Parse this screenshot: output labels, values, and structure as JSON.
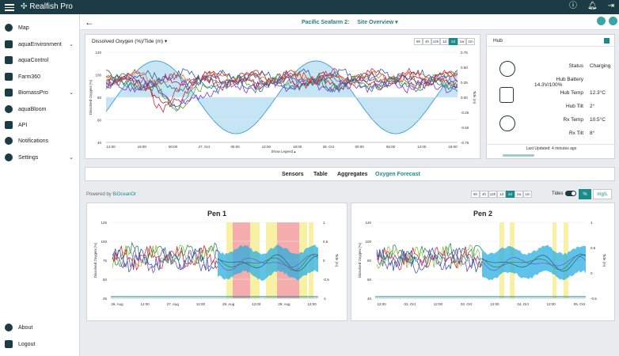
{
  "app": {
    "brand": "Realfish Pro"
  },
  "topbar_icons": [
    "info-icon",
    "bell-icon",
    "logout-icon"
  ],
  "sidebar": {
    "items": [
      {
        "label": "Map",
        "icon": "map-pin-icon"
      },
      {
        "label": "aquaEnvironment",
        "icon": "grid-icon",
        "chevron": "⌄"
      },
      {
        "label": "aquaControl",
        "icon": "control-icon"
      },
      {
        "label": "Farm360",
        "icon": "farm360-icon"
      },
      {
        "label": "BiomassPro",
        "icon": "fish-icon",
        "chevron": "⌄"
      },
      {
        "label": "aquaBloom",
        "icon": "bloom-icon"
      },
      {
        "label": "API",
        "icon": "api-icon"
      },
      {
        "label": "Notifications",
        "icon": "bell-icon"
      },
      {
        "label": "Settings",
        "icon": "gear-icon",
        "chevron": "⌄"
      }
    ],
    "bottom": [
      {
        "label": "About",
        "icon": "info-icon"
      },
      {
        "label": "Logout",
        "icon": "logout-icon"
      }
    ]
  },
  "header": {
    "site": "Pacific Seafarm 2:",
    "view": "Site Overview ▾"
  },
  "do_panel": {
    "title": "Dissolved Oxygen (%)/Tide (m) ▾",
    "ranges": [
      "5h",
      "4h",
      "12h",
      "1d",
      "2d",
      "1w",
      "1m"
    ],
    "active_range": "2d",
    "ylabel": "Dissolved Oxygen (%)",
    "y2label": "Tide (m)",
    "yticks": [
      "120",
      "100",
      "80",
      "60",
      "40"
    ],
    "y2ticks": [
      "0.75",
      "0.50",
      "0.25",
      "0.00",
      "-0.25",
      "-0.50",
      "-0.75"
    ],
    "xticks": [
      "12:00",
      "18:00",
      "00:00",
      "27. Oct",
      "06:00",
      "12:00",
      "18:00",
      "28. Oct",
      "00:00",
      "06:00",
      "12:00",
      "18:00"
    ],
    "legend_toggle": "Show Legend ▴"
  },
  "hub": {
    "title": "Hub",
    "rows": [
      {
        "k": "Status",
        "v": "Charging"
      },
      {
        "k": "Hub Battery",
        "v": "14.3V/100%"
      },
      {
        "k": "Hub Temp",
        "v": "12.3°C"
      },
      {
        "k": "Hub Tilt",
        "v": "2°"
      },
      {
        "k": "Rx Temp",
        "v": "10.5°C"
      },
      {
        "k": "Rx Tilt",
        "v": "8°"
      }
    ],
    "updated": "Last Updated: 4 minutes ago"
  },
  "tabs": [
    "Sensors",
    "Table",
    "Aggregates",
    "Oxygen Forecast"
  ],
  "active_tab": "Oxygen Forecast",
  "forecast": {
    "powered_prefix": "Powered by",
    "powered_brand": "BiOceanOr",
    "ranges": [
      "5h",
      "4h",
      "12h",
      "1d",
      "2d",
      "1w",
      "1m"
    ],
    "active_range": "2d",
    "tides_label": "Tides",
    "units": [
      "%",
      "mg/L"
    ],
    "active_unit": "%"
  },
  "pens": [
    {
      "title": "Pen 1",
      "ylabel": "Dissolved Oxygen (%)",
      "y2label": "Tide (m)",
      "yticks": [
        "125",
        "100",
        "75",
        "50",
        "25"
      ],
      "y2ticks": [
        "1",
        "0.5",
        "0",
        "-0.5",
        "-1"
      ],
      "xticks": [
        "26. Aug",
        "12:00",
        "27. Aug",
        "12:00",
        "28. Aug",
        "12:00",
        "29. Aug",
        "12:00"
      ]
    },
    {
      "title": "Pen 2",
      "ylabel": "Dissolved Oxygen (%)",
      "y2label": "Tide (m)",
      "yticks": [
        "120",
        "100",
        "80",
        "60",
        "40"
      ],
      "y2ticks": [
        "1",
        "0.5",
        "0",
        "-0.5"
      ],
      "xticks": [
        "12:00",
        "02. Oct",
        "12:00",
        "03. Oct",
        "12:00",
        "04. Oct",
        "12:00",
        "05. Oct"
      ]
    }
  ],
  "colors": {
    "accent": "#1b8a8a",
    "dark": "#1b3b45",
    "forecast": "#29aee0",
    "alert_red": "#f4a3a3",
    "alert_yellow": "#f7ef9a"
  }
}
